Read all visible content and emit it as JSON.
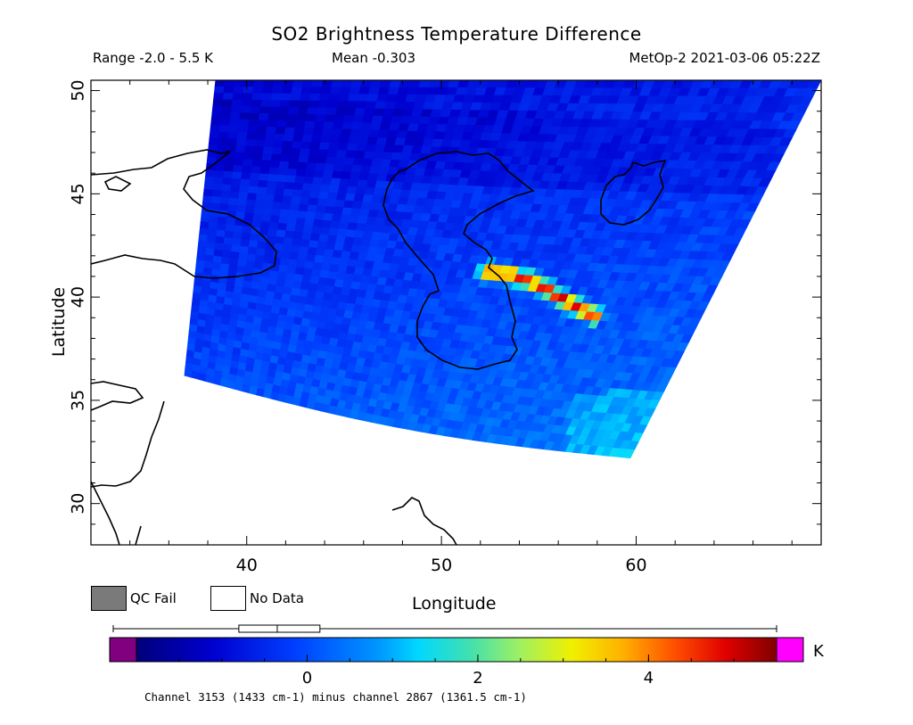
{
  "header": {
    "title": "SO2 Brightness Temperature Difference",
    "range": "Range -2.0 - 5.5 K",
    "mean": "Mean -0.303",
    "satellite": "MetOp-2 2021-03-06 05:22Z"
  },
  "map": {
    "lon_range": [
      32,
      69.5
    ],
    "lat_range": [
      28,
      50.5
    ],
    "xlabel": "Longitude",
    "ylabel": "Latitude",
    "x_ticks": [
      40,
      50,
      60
    ],
    "y_ticks": [
      30,
      35,
      40,
      45,
      50
    ],
    "swath": {
      "corners": {
        "top_left": [
          38.4,
          50.5
        ],
        "top_right": [
          69.5,
          50.5
        ],
        "bottom_left": [
          36.8,
          36.2
        ],
        "bottom_right": [
          59.7,
          32.2
        ]
      }
    },
    "so2_plume": {
      "points": [
        [
          52.3,
          41.2
        ],
        [
          53.5,
          41.1
        ],
        [
          54.5,
          40.8
        ],
        [
          55.3,
          40.4
        ],
        [
          56.0,
          40.0
        ],
        [
          56.8,
          39.6
        ],
        [
          57.8,
          39.1
        ]
      ],
      "peak_k": 5.3
    }
  },
  "legend": {
    "qc_fail": "QC Fail",
    "no_data": "No Data",
    "qc_color": "#7a7a7a"
  },
  "colorbar": {
    "ticks": [
      {
        "value": 0,
        "label": "0"
      },
      {
        "value": 2,
        "label": "2"
      },
      {
        "value": 4,
        "label": "4"
      }
    ],
    "vmin": -2.0,
    "vmax": 5.5,
    "unit": "K",
    "under_color": "#800080",
    "over_color": "#ff00ff",
    "box_plot": {
      "whisker_low": -2.0,
      "q1": -0.8,
      "median": -0.35,
      "q3": 0.15,
      "whisker_high": 5.5
    }
  },
  "caption": "Channel 3153 (1433 cm-1) minus channel 2867 (1361.5 cm-1)"
}
